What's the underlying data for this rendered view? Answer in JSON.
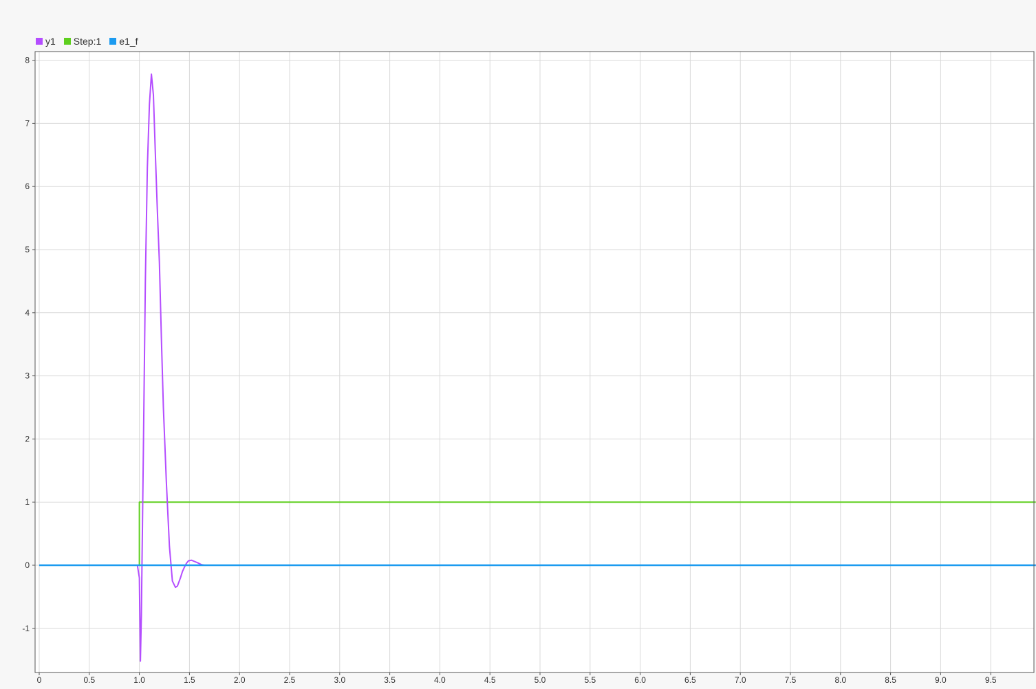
{
  "legend": {
    "items": [
      {
        "label": "y1",
        "color": "#b44dff"
      },
      {
        "label": "Step:1",
        "color": "#5ecf1e"
      },
      {
        "label": "e1_f",
        "color": "#1c9bf0"
      }
    ]
  },
  "chart_data": {
    "type": "line",
    "title": "",
    "xlabel": "",
    "ylabel": "",
    "xlim": [
      0,
      9.95
    ],
    "ylim": [
      -1.7,
      8.1
    ],
    "grid": true,
    "legend_position": "top-left",
    "x_ticks": [
      0,
      0.5,
      1.0,
      1.5,
      2.0,
      2.5,
      3.0,
      3.5,
      4.0,
      4.5,
      5.0,
      5.5,
      6.0,
      6.5,
      7.0,
      7.5,
      8.0,
      8.5,
      9.0,
      9.5
    ],
    "x_tick_labels": [
      "0",
      "0.5",
      "1.0",
      "1.5",
      "2.0",
      "2.5",
      "3.0",
      "3.5",
      "4.0",
      "4.5",
      "5.0",
      "5.5",
      "6.0",
      "6.5",
      "7.0",
      "7.5",
      "8.0",
      "8.5",
      "9.0",
      "9.5"
    ],
    "y_ticks": [
      -1,
      0,
      1,
      2,
      3,
      4,
      5,
      6,
      7,
      8
    ],
    "y_tick_labels": [
      "-1",
      "0",
      "1",
      "2",
      "3",
      "4",
      "5",
      "6",
      "7",
      "8"
    ],
    "series": [
      {
        "name": "y1",
        "color": "#b44dff",
        "x": [
          0,
          0.98,
          1.0,
          1.01,
          1.02,
          1.04,
          1.06,
          1.08,
          1.1,
          1.12,
          1.14,
          1.16,
          1.18,
          1.2,
          1.22,
          1.24,
          1.27,
          1.3,
          1.33,
          1.36,
          1.38,
          1.41,
          1.43,
          1.45,
          1.47,
          1.49,
          1.52,
          1.55,
          1.58,
          1.62,
          1.65,
          1.68,
          1.72,
          1.76,
          1.8,
          1.85,
          1.9,
          9.95
        ],
        "y": [
          0,
          0,
          -0.2,
          -1.52,
          -0.8,
          1.8,
          4.5,
          6.3,
          7.3,
          7.78,
          7.45,
          6.5,
          5.6,
          4.8,
          3.6,
          2.5,
          1.3,
          0.3,
          -0.25,
          -0.35,
          -0.33,
          -0.2,
          -0.1,
          -0.03,
          0.03,
          0.07,
          0.08,
          0.06,
          0.04,
          0.01,
          0,
          0,
          0,
          0,
          0,
          0,
          0,
          0
        ]
      },
      {
        "name": "Step:1",
        "color": "#5ecf1e",
        "x": [
          0,
          1.0,
          1.0,
          9.95
        ],
        "y": [
          0,
          0,
          1,
          1
        ]
      },
      {
        "name": "e1_f",
        "color": "#1c9bf0",
        "x": [
          0,
          9.95
        ],
        "y": [
          0,
          0
        ]
      }
    ]
  }
}
